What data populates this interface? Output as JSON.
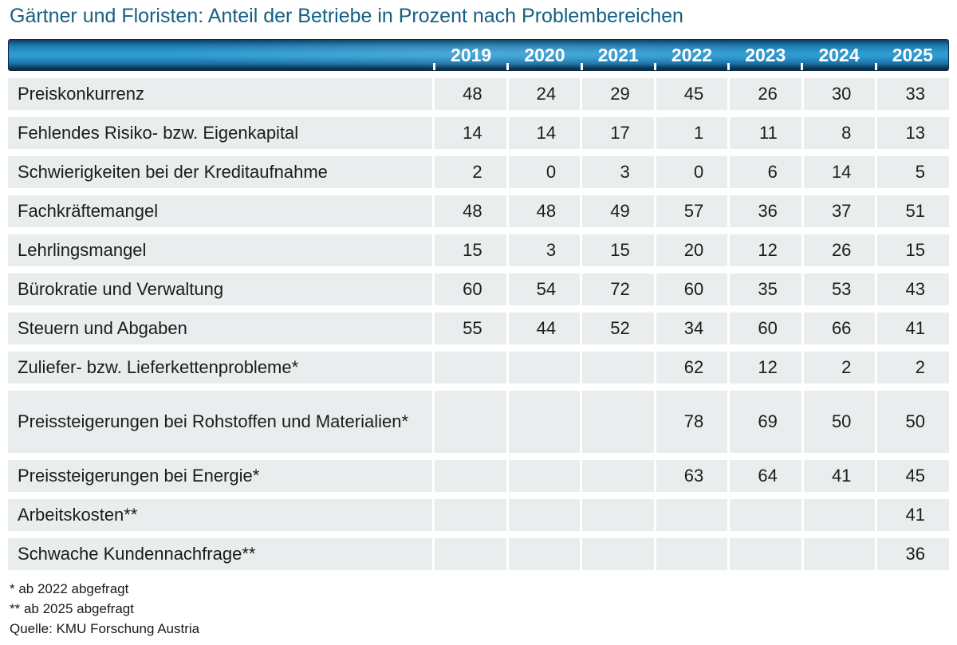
{
  "page_title": "Gärtner und Floristen: Anteil der Betriebe in Prozent nach Problembereichen",
  "colors": {
    "title_text": "#156082",
    "header_gradient_bright": "#2f9dd3",
    "header_gradient_dark": "#092a45",
    "header_text": "#ffffff",
    "row_background": "#e9edee",
    "body_text": "#1c1c1c"
  },
  "chart_data": {
    "type": "table",
    "title": "Gärtner und Floristen: Anteil der Betriebe in Prozent nach Problembereichen",
    "ylabel": "Anteil der Betriebe in Prozent",
    "columns": [
      "2019",
      "2020",
      "2021",
      "2022",
      "2023",
      "2024",
      "2025"
    ],
    "rows": [
      {
        "label": "Preiskonkurrenz",
        "values": [
          48,
          24,
          29,
          45,
          26,
          30,
          33
        ]
      },
      {
        "label": "Fehlendes Risiko- bzw. Eigenkapital",
        "values": [
          14,
          14,
          17,
          1,
          11,
          8,
          13
        ]
      },
      {
        "label": "Schwierigkeiten bei der Kreditaufnahme",
        "values": [
          2,
          0,
          3,
          0,
          6,
          14,
          5
        ]
      },
      {
        "label": "Fachkräftemangel",
        "values": [
          48,
          48,
          49,
          57,
          36,
          37,
          51
        ]
      },
      {
        "label": "Lehrlingsmangel",
        "values": [
          15,
          3,
          15,
          20,
          12,
          26,
          15
        ]
      },
      {
        "label": "Bürokratie und Verwaltung",
        "values": [
          60,
          54,
          72,
          60,
          35,
          53,
          43
        ]
      },
      {
        "label": "Steuern und Abgaben",
        "values": [
          55,
          44,
          52,
          34,
          60,
          66,
          41
        ]
      },
      {
        "label": "Zuliefer- bzw. Lieferkettenprobleme*",
        "values": [
          null,
          null,
          null,
          62,
          12,
          2,
          2
        ]
      },
      {
        "label": "Preissteigerungen bei Rohstoffen und Materialien*",
        "values": [
          null,
          null,
          null,
          78,
          69,
          50,
          50
        ]
      },
      {
        "label": "Preissteigerungen bei Energie*",
        "values": [
          null,
          null,
          null,
          63,
          64,
          41,
          45
        ]
      },
      {
        "label": "Arbeitskosten**",
        "values": [
          null,
          null,
          null,
          null,
          null,
          null,
          41
        ]
      },
      {
        "label": "Schwache Kundennachfrage**",
        "values": [
          null,
          null,
          null,
          null,
          null,
          null,
          36
        ]
      }
    ],
    "footnotes": [
      "* ab 2022 abgefragt",
      "** ab 2025 abgefragt"
    ],
    "source": "Quelle: KMU Forschung Austria"
  }
}
